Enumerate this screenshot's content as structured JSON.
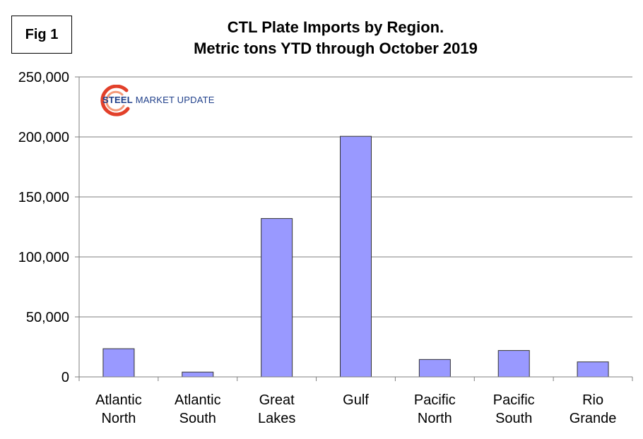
{
  "fig_label": "Fig 1",
  "logo": {
    "word1": "STEEL",
    "word2": "MARKET UPDATE"
  },
  "colors": {
    "bar": "#9999FF",
    "bar_stroke": "#333333",
    "grid": "#7f7f7f",
    "axis": "#7f7f7f",
    "logo_blue": "#1f3f8a",
    "logo_red": "#e2402a"
  },
  "chart_data": {
    "type": "bar",
    "title": "CTL Plate Imports by Region.",
    "subtitle": "Metric tons YTD through October 2019",
    "categories": [
      [
        "Atlantic",
        "North"
      ],
      [
        "Atlantic",
        "South"
      ],
      [
        "Great",
        "Lakes"
      ],
      [
        "Gulf"
      ],
      [
        "Pacific",
        "North"
      ],
      [
        "Pacific",
        "South"
      ],
      [
        "Rio",
        "Grande"
      ]
    ],
    "values": [
      23500,
      4000,
      132000,
      200500,
      14500,
      22000,
      12500
    ],
    "ylim": [
      0,
      250000
    ],
    "yticks": [
      0,
      50000,
      100000,
      150000,
      200000,
      250000
    ],
    "ytick_labels": [
      "0",
      "50,000",
      "100,000",
      "150,000",
      "200,000",
      "250,000"
    ],
    "grid": true,
    "legend": "none"
  }
}
